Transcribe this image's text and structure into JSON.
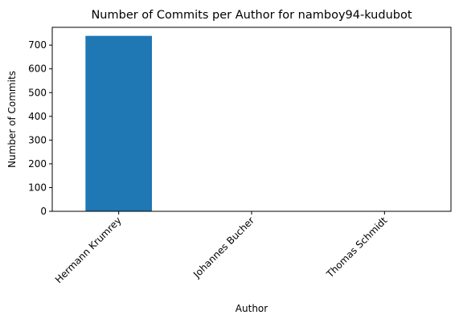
{
  "chart_data": {
    "type": "bar",
    "title": "Number of Commits per Author for namboy94-kudubot",
    "xlabel": "Author",
    "ylabel": "Number of Commits",
    "categories": [
      "Hermann Krumrey",
      "Johannes Bucher",
      "Thomas Schmidt"
    ],
    "values": [
      739,
      1,
      1
    ],
    "ylim": [
      0,
      775
    ],
    "yticks": [
      0,
      100,
      200,
      300,
      400,
      500,
      600,
      700
    ],
    "grid": false,
    "legend": "none",
    "bar_color": "#1f77b4"
  }
}
